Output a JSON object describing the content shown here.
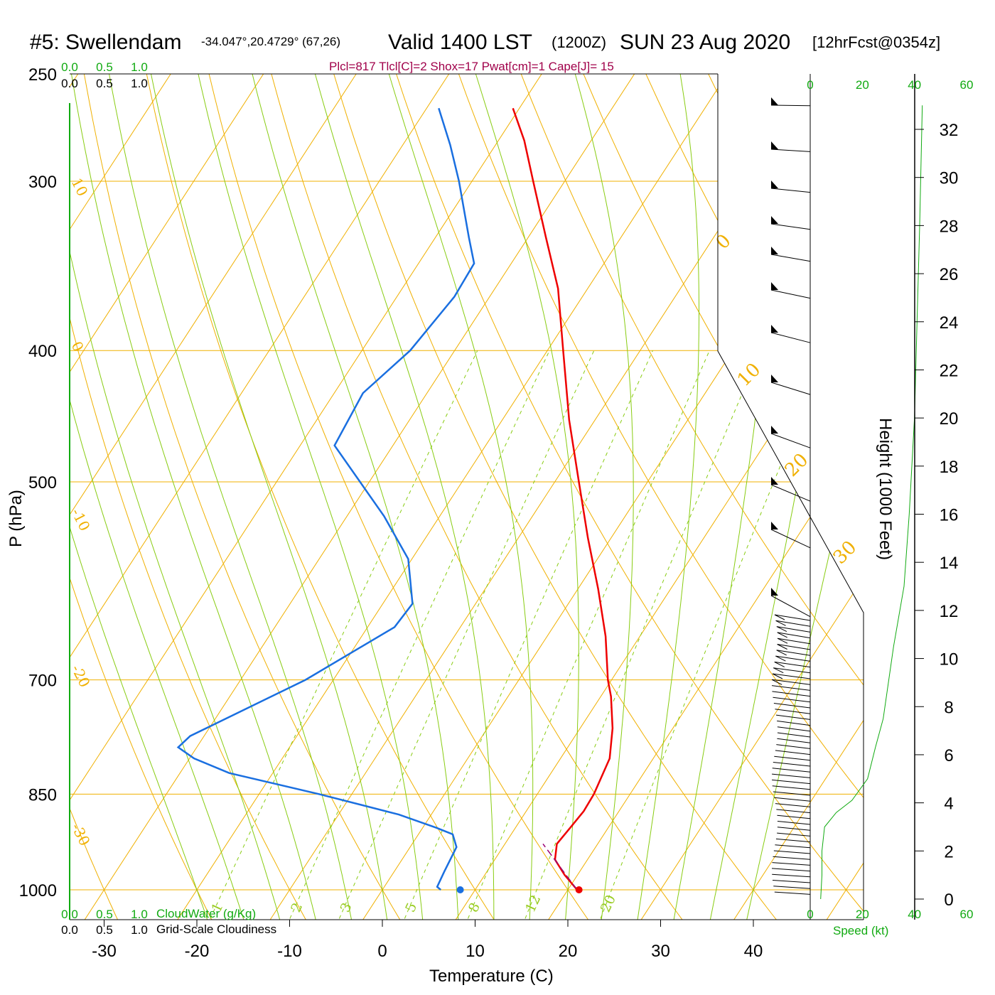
{
  "header": {
    "station": "#5: Swellendam",
    "coords": "-34.047°,20.4729° (67,26)",
    "valid": "Valid 1400 LST",
    "utc": "(1200Z)",
    "date": "SUN 23 Aug 2020",
    "forecast": "[12hrFcst@0354z]",
    "params": "Plcl=817 Tlcl[C]=2 Shox=17 Pwat[cm]=1 Cape[J]= 15"
  },
  "colors": {
    "temperature": "#ee0000",
    "dewpoint": "#1a6fe0",
    "isotherm_isobar": "#f0b000",
    "dry_adiabat": "#f0b000",
    "moist_adiabat": "#88cc11",
    "mixing_ratio": "#88cc11",
    "cloud_axis": "#11aa11",
    "wind_speed": "#11aa11",
    "parcel": "#9a0070"
  },
  "chart_data": {
    "type": "skewt",
    "xlabel": "Temperature (C)",
    "ylabel": "P (hPa)",
    "right_ylabel": "Height (1000 Feet)",
    "x_ticks": [
      "-30",
      "-20",
      "-10",
      "0",
      "10",
      "20",
      "30",
      "40"
    ],
    "pressure_ticks": [
      "250",
      "300",
      "400",
      "500",
      "700",
      "850",
      "1000"
    ],
    "height_ticks": [
      "0",
      "2",
      "4",
      "6",
      "8",
      "10",
      "12",
      "14",
      "16",
      "18",
      "20",
      "22",
      "24",
      "26",
      "28",
      "30",
      "32"
    ],
    "cloud_axis_top": [
      "0.0",
      "0.5",
      "1.0"
    ],
    "cloud_axis_bottom": [
      "0.0",
      "0.5",
      "1.0"
    ],
    "cloud_water_label": "CloudWater (g/Kg)",
    "cloudiness_label": "Grid-Scale Cloudiness",
    "speed_ticks": [
      "0",
      "20",
      "40",
      "60"
    ],
    "speed_label": "Speed (kt)",
    "isotherm_labels": [
      "10",
      "0",
      "-10",
      "-20",
      "-30"
    ],
    "dry_adiabat_labels": [
      "0",
      "10",
      "20",
      "30"
    ],
    "mixing_ratio_labels": [
      "1",
      "2",
      "3",
      "5",
      "8",
      "12",
      "20"
    ],
    "temperature_profile": [
      {
        "p": 1000,
        "t": 21.0
      },
      {
        "p": 975,
        "t": 18.6
      },
      {
        "p": 950,
        "t": 16.5
      },
      {
        "p": 925,
        "t": 15.6
      },
      {
        "p": 900,
        "t": 15.9
      },
      {
        "p": 875,
        "t": 16.2
      },
      {
        "p": 850,
        "t": 16.1
      },
      {
        "p": 800,
        "t": 15.3
      },
      {
        "p": 760,
        "t": 13.5
      },
      {
        "p": 720,
        "t": 11.1
      },
      {
        "p": 700,
        "t": 9.6
      },
      {
        "p": 650,
        "t": 6.3
      },
      {
        "p": 600,
        "t": 2.2
      },
      {
        "p": 550,
        "t": -2.5
      },
      {
        "p": 500,
        "t": -7.4
      },
      {
        "p": 450,
        "t": -12.8
      },
      {
        "p": 400,
        "t": -18.3
      },
      {
        "p": 360,
        "t": -23.2
      },
      {
        "p": 330,
        "t": -28.1
      },
      {
        "p": 300,
        "t": -33.4
      },
      {
        "p": 280,
        "t": -37.2
      },
      {
        "p": 265,
        "t": -40.7
      }
    ],
    "dewpoint_profile": [
      {
        "p": 1000,
        "t": 6.3
      },
      {
        "p": 995,
        "t": 5.7
      },
      {
        "p": 970,
        "t": 5.4
      },
      {
        "p": 930,
        "t": 5.0
      },
      {
        "p": 910,
        "t": 3.7
      },
      {
        "p": 900,
        "t": 1.5
      },
      {
        "p": 880,
        "t": -3.5
      },
      {
        "p": 850,
        "t": -13.5
      },
      {
        "p": 820,
        "t": -24.7
      },
      {
        "p": 800,
        "t": -29.5
      },
      {
        "p": 785,
        "t": -32.0
      },
      {
        "p": 770,
        "t": -31.5
      },
      {
        "p": 700,
        "t": -23.0
      },
      {
        "p": 640,
        "t": -17.1
      },
      {
        "p": 615,
        "t": -16.8
      },
      {
        "p": 570,
        "t": -20.4
      },
      {
        "p": 530,
        "t": -26.0
      },
      {
        "p": 470,
        "t": -36.3
      },
      {
        "p": 430,
        "t": -36.9
      },
      {
        "p": 400,
        "t": -34.8
      },
      {
        "p": 365,
        "t": -33.8
      },
      {
        "p": 345,
        "t": -34.0
      },
      {
        "p": 330,
        "t": -36.4
      },
      {
        "p": 300,
        "t": -41.4
      },
      {
        "p": 282,
        "t": -44.9
      },
      {
        "p": 265,
        "t": -48.7
      }
    ],
    "parcel_path": [
      {
        "p": 1000,
        "t": 21.0
      },
      {
        "p": 970,
        "t": 18.3
      },
      {
        "p": 945,
        "t": 16.0
      },
      {
        "p": 925,
        "t": 14.1
      }
    ],
    "surface_temperature": 21.2,
    "surface_dewpoint": 8.4,
    "wind_speed_profile": [
      {
        "h": 0.0,
        "s": 4
      },
      {
        "h": 1.0,
        "s": 4.5
      },
      {
        "h": 2.0,
        "s": 4.5
      },
      {
        "h": 3.0,
        "s": 5.5
      },
      {
        "h": 3.6,
        "s": 10
      },
      {
        "h": 4.1,
        "s": 16
      },
      {
        "h": 5.0,
        "s": 22
      },
      {
        "h": 6.3,
        "s": 25
      },
      {
        "h": 7.5,
        "s": 28
      },
      {
        "h": 9.0,
        "s": 30
      },
      {
        "h": 10.5,
        "s": 32
      },
      {
        "h": 13.0,
        "s": 36
      },
      {
        "h": 16.0,
        "s": 38
      },
      {
        "h": 20.0,
        "s": 40
      },
      {
        "h": 24.0,
        "s": 41
      },
      {
        "h": 28.0,
        "s": 42
      },
      {
        "h": 33.0,
        "s": 43
      }
    ]
  }
}
